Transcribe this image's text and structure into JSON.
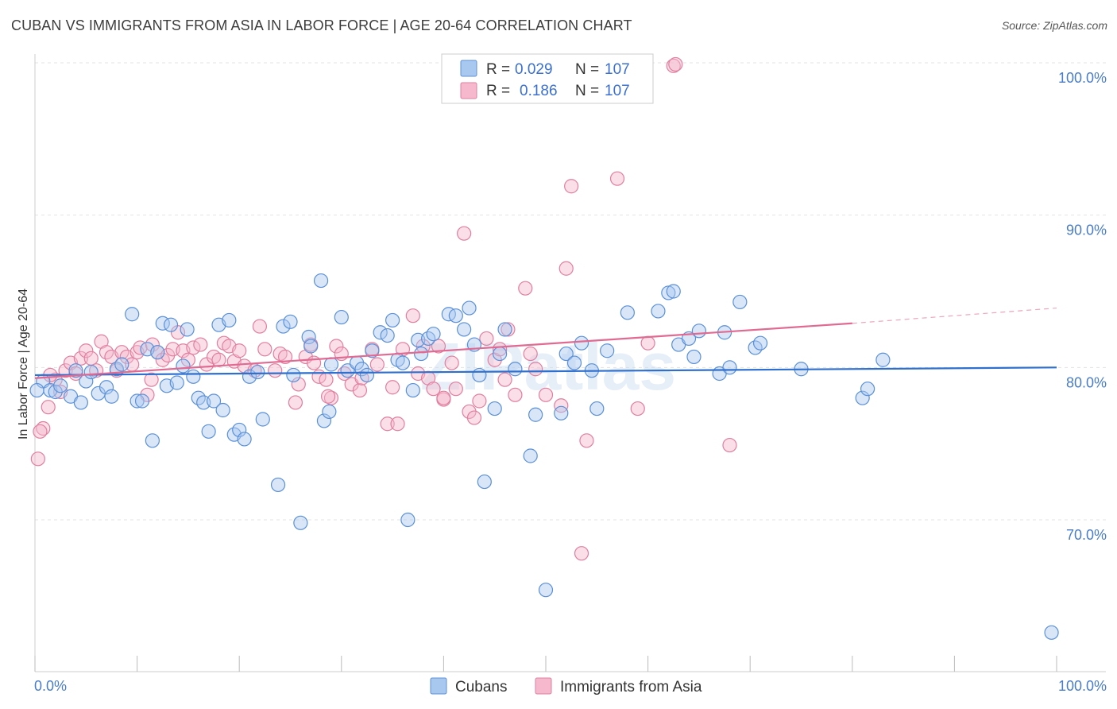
{
  "title": "CUBAN VS IMMIGRANTS FROM ASIA IN LABOR FORCE | AGE 20-64 CORRELATION CHART",
  "source": "Source: ZipAtlas.com",
  "watermark": "ZIPatlas",
  "colors": {
    "cubans_fill": "#a9c8f0",
    "cubans_stroke": "#5b90d8",
    "cubans_line": "#2f6fcd",
    "asia_fill": "#f5b8cc",
    "asia_stroke": "#e07fa0",
    "asia_line": "#e06a92",
    "axis_text": "#4a7cc7",
    "grid": "#e3e3e3"
  },
  "legend": {
    "r_label": "R =",
    "n_label": "N =",
    "rows": [
      {
        "r": "0.029",
        "n": "107"
      },
      {
        "r": "0.186",
        "n": "107"
      }
    ]
  },
  "chart_data": {
    "type": "scatter",
    "title": "CUBAN VS IMMIGRANTS FROM ASIA IN LABOR FORCE | AGE 20-64 CORRELATION CHART",
    "ylabel": "In Labor Force | Age 20-64",
    "xlabel": "",
    "x_tick_labels": [
      "0.0%",
      "100.0%"
    ],
    "y_tick_labels": [
      "70.0%",
      "80.0%",
      "90.0%",
      "100.0%"
    ],
    "y_ticks": [
      70,
      80,
      90,
      100
    ],
    "xlim": [
      0,
      100
    ],
    "ylim": [
      60,
      101
    ],
    "grid": "horizontal dashed",
    "series": [
      {
        "name": "Cubans",
        "r": 0.029,
        "n": 107,
        "trend": {
          "x": [
            0,
            100
          ],
          "y": [
            79.5,
            80.0
          ],
          "dashed_from": null
        },
        "points": [
          [
            0.8,
            79.1
          ],
          [
            1.5,
            78.5
          ],
          [
            2,
            78.4
          ],
          [
            2.5,
            78.8
          ],
          [
            3.5,
            78.1
          ],
          [
            4,
            79.8
          ],
          [
            4.5,
            77.7
          ],
          [
            5,
            79.1
          ],
          [
            5.5,
            79.7
          ],
          [
            6.2,
            78.3
          ],
          [
            7,
            78.7
          ],
          [
            7.5,
            78.1
          ],
          [
            8,
            79.9
          ],
          [
            8.5,
            80.2
          ],
          [
            9.5,
            83.5
          ],
          [
            10,
            77.8
          ],
          [
            10.5,
            77.8
          ],
          [
            11,
            81.2
          ],
          [
            11.5,
            75.2
          ],
          [
            12,
            81
          ],
          [
            12.5,
            82.9
          ],
          [
            12.9,
            78.8
          ],
          [
            13.3,
            82.8
          ],
          [
            13.9,
            79
          ],
          [
            14.5,
            80.1
          ],
          [
            14.9,
            82.5
          ],
          [
            15.5,
            79.4
          ],
          [
            16,
            78
          ],
          [
            16.5,
            77.7
          ],
          [
            17,
            75.8
          ],
          [
            17.5,
            77.8
          ],
          [
            18,
            82.8
          ],
          [
            18.4,
            77.2
          ],
          [
            19,
            83.1
          ],
          [
            19.5,
            75.6
          ],
          [
            20,
            75.9
          ],
          [
            20.5,
            75.3
          ],
          [
            21,
            79.4
          ],
          [
            21.8,
            79.7
          ],
          [
            22.3,
            76.6
          ],
          [
            23.8,
            72.3
          ],
          [
            24.3,
            82.7
          ],
          [
            25,
            83
          ],
          [
            25.3,
            79.5
          ],
          [
            26,
            69.8
          ],
          [
            26.8,
            82
          ],
          [
            27,
            81.4
          ],
          [
            28,
            85.7
          ],
          [
            28.3,
            76.5
          ],
          [
            28.8,
            77.1
          ],
          [
            29,
            80.2
          ],
          [
            30,
            83.3
          ],
          [
            30.6,
            79.8
          ],
          [
            31.5,
            80.3
          ],
          [
            32,
            79.9
          ],
          [
            32.5,
            79.5
          ],
          [
            33,
            81.1
          ],
          [
            33.8,
            82.3
          ],
          [
            34.5,
            82.1
          ],
          [
            35,
            83.1
          ],
          [
            35.5,
            80.5
          ],
          [
            36,
            80.3
          ],
          [
            36.5,
            70
          ],
          [
            37,
            78.5
          ],
          [
            37.5,
            81.8
          ],
          [
            37.8,
            80.9
          ],
          [
            38.5,
            81.9
          ],
          [
            39,
            82.2
          ],
          [
            40.5,
            83.5
          ],
          [
            41.2,
            83.4
          ],
          [
            42,
            82.5
          ],
          [
            42.5,
            83.9
          ],
          [
            43,
            81.5
          ],
          [
            43.5,
            79.5
          ],
          [
            44,
            72.5
          ],
          [
            45,
            77.3
          ],
          [
            45.5,
            80.9
          ],
          [
            46,
            82.5
          ],
          [
            47,
            79.9
          ],
          [
            48.5,
            74.2
          ],
          [
            49,
            76.9
          ],
          [
            50,
            65.4
          ],
          [
            51.5,
            77
          ],
          [
            52,
            80.9
          ],
          [
            52.8,
            80.3
          ],
          [
            53.5,
            81.6
          ],
          [
            54.5,
            79.8
          ],
          [
            55,
            77.3
          ],
          [
            56,
            81.1
          ],
          [
            58,
            83.6
          ],
          [
            61,
            83.7
          ],
          [
            62,
            84.9
          ],
          [
            62.5,
            85
          ],
          [
            63,
            81.5
          ],
          [
            64,
            81.9
          ],
          [
            64.5,
            80.7
          ],
          [
            65,
            82.4
          ],
          [
            67,
            79.6
          ],
          [
            67.5,
            82.3
          ],
          [
            68,
            80
          ],
          [
            69,
            84.3
          ],
          [
            70.5,
            81.3
          ],
          [
            71,
            81.6
          ],
          [
            75,
            79.9
          ],
          [
            81,
            78
          ],
          [
            81.5,
            78.6
          ],
          [
            83,
            80.5
          ],
          [
            99.5,
            62.6
          ],
          [
            0.2,
            78.5
          ]
        ]
      },
      {
        "name": "Immigrants from Asia",
        "r": 0.186,
        "n": 107,
        "trend": {
          "x": [
            0,
            80
          ],
          "y": [
            79.3,
            82.9
          ],
          "dashed_to": [
            100,
            83.9
          ]
        },
        "points": [
          [
            0.3,
            74
          ],
          [
            0.8,
            76
          ],
          [
            1.3,
            77.4
          ],
          [
            2,
            79.2
          ],
          [
            2.5,
            78.4
          ],
          [
            3,
            79.8
          ],
          [
            3.5,
            80.3
          ],
          [
            4,
            79.6
          ],
          [
            4.5,
            80.6
          ],
          [
            5,
            81.1
          ],
          [
            5.5,
            80.6
          ],
          [
            6,
            79.8
          ],
          [
            6.5,
            81.7
          ],
          [
            7,
            81
          ],
          [
            7.5,
            80.7
          ],
          [
            8,
            79.8
          ],
          [
            8.5,
            81
          ],
          [
            9,
            80.7
          ],
          [
            9.5,
            80.2
          ],
          [
            10,
            81
          ],
          [
            10.3,
            81.3
          ],
          [
            11,
            78.2
          ],
          [
            11.5,
            81.5
          ],
          [
            12,
            81
          ],
          [
            12.5,
            80.5
          ],
          [
            13,
            80.8
          ],
          [
            13.5,
            81.2
          ],
          [
            14,
            82.3
          ],
          [
            14.5,
            81.1
          ],
          [
            15,
            80.5
          ],
          [
            15.5,
            81.3
          ],
          [
            16.2,
            81.5
          ],
          [
            16.8,
            80.2
          ],
          [
            17.5,
            80.7
          ],
          [
            18,
            80.5
          ],
          [
            18.5,
            81.6
          ],
          [
            19,
            81.4
          ],
          [
            19.5,
            80.4
          ],
          [
            20,
            81.1
          ],
          [
            20.5,
            80.1
          ],
          [
            21.5,
            79.8
          ],
          [
            22,
            82.7
          ],
          [
            22.5,
            81.2
          ],
          [
            23.5,
            79.8
          ],
          [
            24,
            80.9
          ],
          [
            24.5,
            80.7
          ],
          [
            25.5,
            77.7
          ],
          [
            25.8,
            78.9
          ],
          [
            26.5,
            80.7
          ],
          [
            27,
            81.5
          ],
          [
            27.3,
            80.3
          ],
          [
            27.8,
            79.4
          ],
          [
            28.5,
            79.2
          ],
          [
            29,
            78
          ],
          [
            29.5,
            81.4
          ],
          [
            30,
            80.9
          ],
          [
            30.3,
            79.6
          ],
          [
            31,
            78.9
          ],
          [
            31.8,
            78.5
          ],
          [
            32,
            79.3
          ],
          [
            33,
            81.2
          ],
          [
            33.5,
            80.2
          ],
          [
            34.5,
            76.3
          ],
          [
            35,
            78.7
          ],
          [
            35.5,
            76.3
          ],
          [
            36,
            81.2
          ],
          [
            37,
            83.4
          ],
          [
            37.5,
            79.6
          ],
          [
            38,
            81.4
          ],
          [
            38.5,
            79.3
          ],
          [
            39,
            78.6
          ],
          [
            39.5,
            81.4
          ],
          [
            40,
            77.9
          ],
          [
            40.8,
            80.3
          ],
          [
            41.2,
            78.6
          ],
          [
            42,
            88.8
          ],
          [
            42.5,
            77.1
          ],
          [
            43,
            76.7
          ],
          [
            43.5,
            77.8
          ],
          [
            44.2,
            81.9
          ],
          [
            45,
            80.5
          ],
          [
            45.5,
            81.2
          ],
          [
            46,
            79.2
          ],
          [
            46.3,
            82.5
          ],
          [
            47,
            78.2
          ],
          [
            48,
            85.2
          ],
          [
            48.5,
            80.9
          ],
          [
            49,
            79.9
          ],
          [
            50,
            78.2
          ],
          [
            51.5,
            77.5
          ],
          [
            52,
            86.5
          ],
          [
            52.5,
            91.9
          ],
          [
            53.5,
            67.8
          ],
          [
            54,
            75.2
          ],
          [
            57,
            92.4
          ],
          [
            59,
            77.3
          ],
          [
            60,
            81.6
          ],
          [
            62.5,
            99.8
          ],
          [
            68,
            74.9
          ],
          [
            62.7,
            99.9
          ],
          [
            28.7,
            78.1
          ],
          [
            11.4,
            79.2
          ],
          [
            40,
            78
          ],
          [
            1.5,
            79.5
          ],
          [
            0.5,
            75.8
          ]
        ]
      }
    ]
  },
  "bottom_legend": [
    "Cubans",
    "Immigrants from Asia"
  ]
}
